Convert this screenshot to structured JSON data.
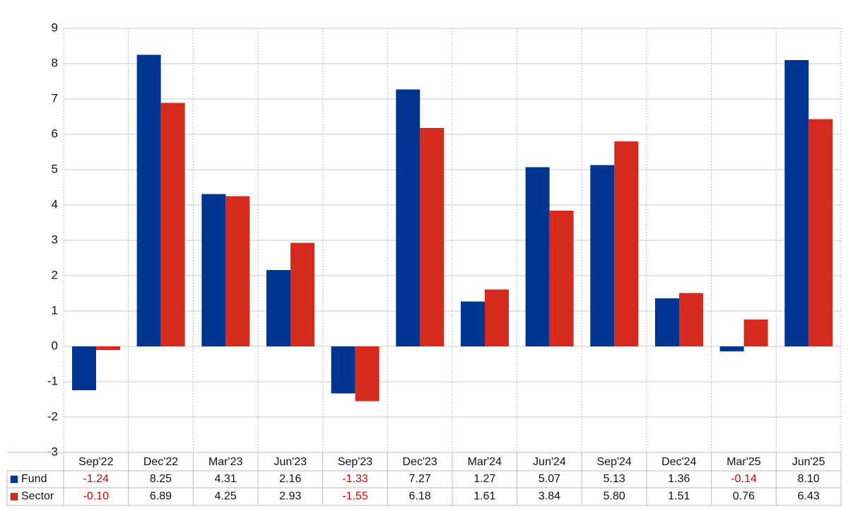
{
  "chart_data": {
    "type": "bar",
    "categories": [
      "Sep'22",
      "Dec'22",
      "Mar'23",
      "Jun'23",
      "Sep'23",
      "Dec'23",
      "Mar'24",
      "Jun'24",
      "Sep'24",
      "Dec'24",
      "Mar'25",
      "Jun'25"
    ],
    "series": [
      {
        "name": "Fund",
        "color": "#003591",
        "values": [
          -1.24,
          8.25,
          4.31,
          2.16,
          -1.33,
          7.27,
          1.27,
          5.07,
          5.13,
          1.36,
          -0.14,
          8.1
        ],
        "value_labels": [
          "-1.24",
          "8.25",
          "4.31",
          "2.16",
          "-1.33",
          "7.27",
          "1.27",
          "5.07",
          "5.13",
          "1.36",
          "-0.14",
          "8.10"
        ]
      },
      {
        "name": "Sector",
        "color": "#d52b1e",
        "values": [
          -0.1,
          6.89,
          4.25,
          2.93,
          -1.55,
          6.18,
          1.61,
          3.84,
          5.8,
          1.51,
          0.76,
          6.43
        ],
        "value_labels": [
          "-0.10",
          "6.89",
          "4.25",
          "2.93",
          "-1.55",
          "6.18",
          "1.61",
          "3.84",
          "5.80",
          "1.51",
          "0.76",
          "6.43"
        ]
      }
    ],
    "ylim": [
      -3,
      9
    ],
    "yticks": [
      -3,
      -2,
      -1,
      0,
      1,
      2,
      3,
      4,
      5,
      6,
      7,
      8,
      9
    ],
    "grid": true
  }
}
